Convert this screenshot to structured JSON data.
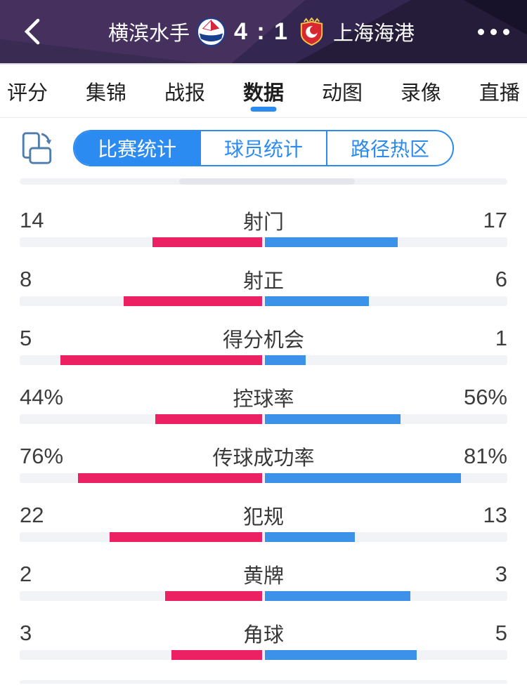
{
  "header": {
    "home_team": "横滨水手",
    "away_team": "上海海港",
    "home_score": "4",
    "score_separator": ":",
    "away_score": "1"
  },
  "tabs": [
    {
      "label": "评分",
      "active": false
    },
    {
      "label": "集锦",
      "active": false
    },
    {
      "label": "战报",
      "active": false
    },
    {
      "label": "数据",
      "active": true
    },
    {
      "label": "动图",
      "active": false
    },
    {
      "label": "录像",
      "active": false
    },
    {
      "label": "直播",
      "active": false
    }
  ],
  "subtabs": [
    {
      "label": "比赛统计",
      "active": true
    },
    {
      "label": "球员统计",
      "active": false
    },
    {
      "label": "路径热区",
      "active": false
    }
  ],
  "chart_data": {
    "type": "bar",
    "title": "比赛统计",
    "left_team": "横滨水手",
    "right_team": "上海海港",
    "stats": [
      {
        "label": "射门",
        "left": "14",
        "right": "17",
        "left_frac": 0.452,
        "right_frac": 0.548
      },
      {
        "label": "射正",
        "left": "8",
        "right": "6",
        "left_frac": 0.571,
        "right_frac": 0.429
      },
      {
        "label": "得分机会",
        "left": "5",
        "right": "1",
        "left_frac": 0.833,
        "right_frac": 0.167
      },
      {
        "label": "控球率",
        "left": "44%",
        "right": "56%",
        "left_frac": 0.44,
        "right_frac": 0.56
      },
      {
        "label": "传球成功率",
        "left": "76%",
        "right": "81%",
        "left_frac": 0.76,
        "right_frac": 0.81
      },
      {
        "label": "犯规",
        "left": "22",
        "right": "13",
        "left_frac": 0.629,
        "right_frac": 0.371
      },
      {
        "label": "黄牌",
        "left": "2",
        "right": "3",
        "left_frac": 0.4,
        "right_frac": 0.6
      },
      {
        "label": "角球",
        "left": "3",
        "right": "5",
        "left_frac": 0.375,
        "right_frac": 0.625
      }
    ],
    "colors": {
      "left_bar": "#ec2164",
      "right_bar": "#3c92e9",
      "track": "#f2f3f6",
      "accent": "#2b8bf0"
    }
  }
}
